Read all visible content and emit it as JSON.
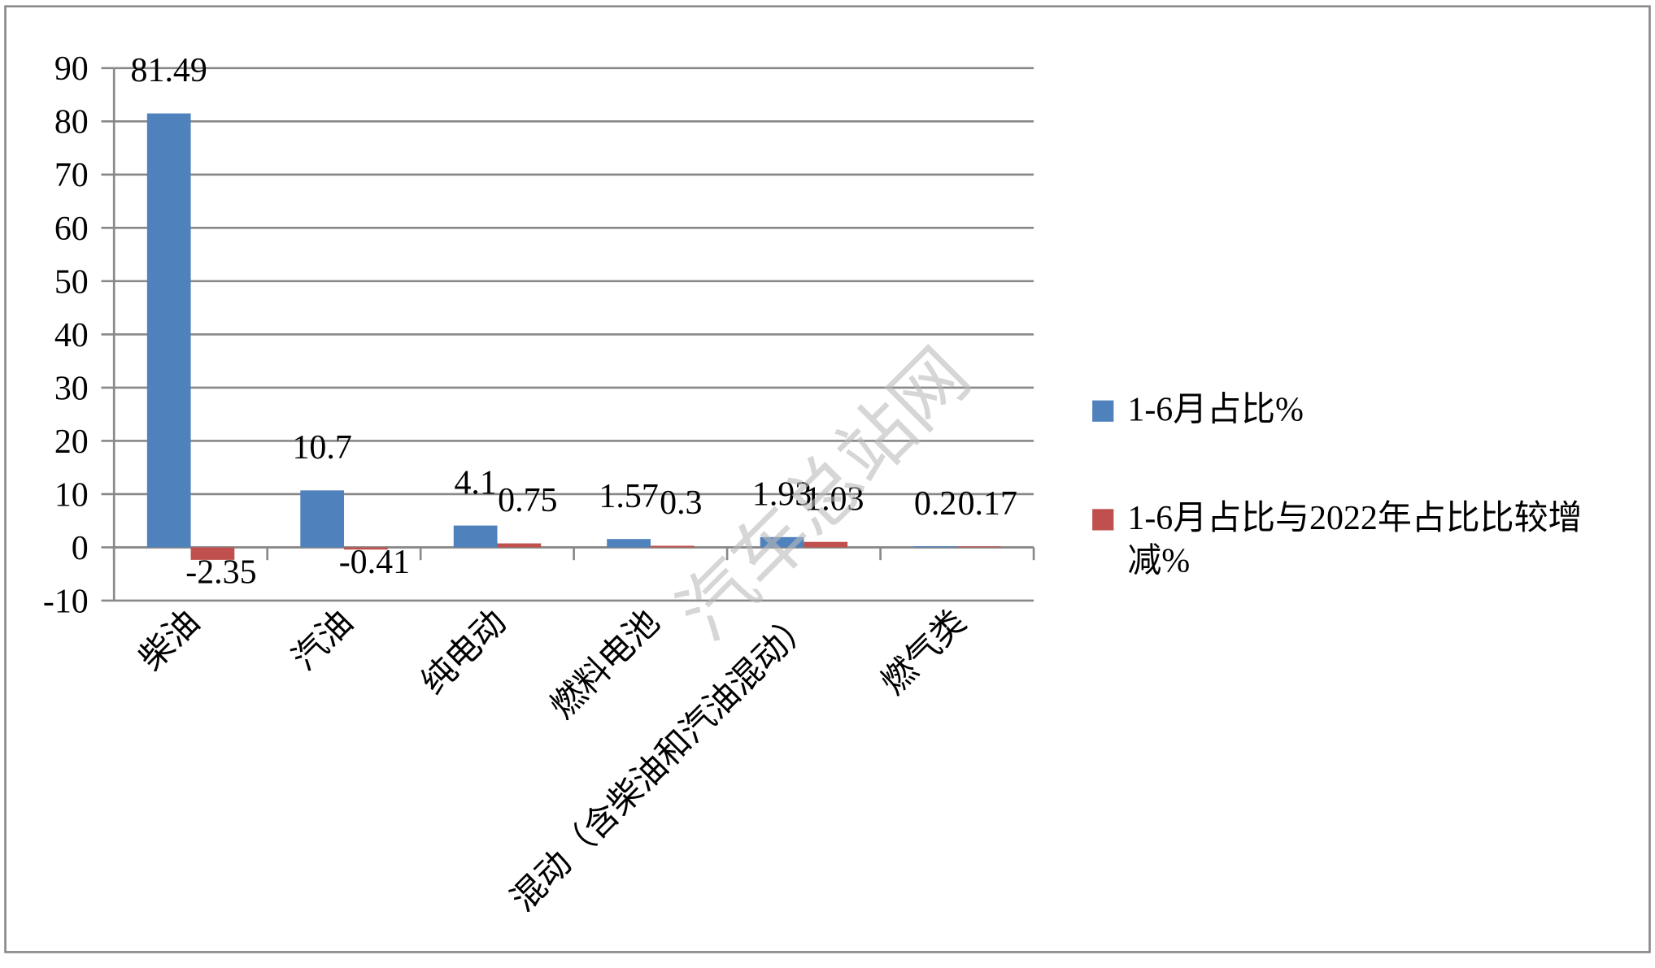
{
  "chart_data": {
    "type": "bar",
    "categories": [
      "柴油",
      "汽油",
      "纯电动",
      "燃料电池",
      "混动（含柴油和汽油混动）",
      "燃气类"
    ],
    "series": [
      {
        "name": "1-6月占比%",
        "color": "#4f81bd",
        "values": [
          81.49,
          10.7,
          4.1,
          1.57,
          1.93,
          0.2
        ]
      },
      {
        "name": "1-6月占比与2022年占比比较增减%",
        "color": "#c0504d",
        "values": [
          -2.35,
          -0.41,
          0.75,
          0.3,
          1.03,
          0.17
        ]
      }
    ],
    "ylim": [
      -10,
      90
    ],
    "yticks": [
      -10,
      0,
      10,
      20,
      30,
      40,
      50,
      60,
      70,
      80,
      90
    ],
    "grid": true,
    "legend": "right",
    "watermark": "汽车总站网"
  }
}
